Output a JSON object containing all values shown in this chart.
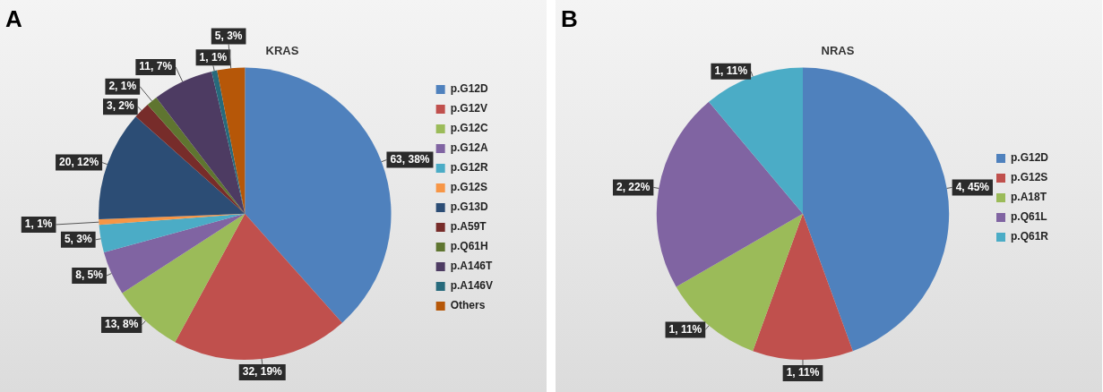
{
  "chart_data": [
    {
      "type": "pie",
      "title": "KRAS",
      "annotations": [
        "A"
      ],
      "legend": "right",
      "categories": [
        "p.G12D",
        "p.G12V",
        "p.G12C",
        "p.G12A",
        "p.G12R",
        "p.G12S",
        "p.G13D",
        "p.A59T",
        "p.Q61H",
        "p.A146T",
        "p.A146V",
        "Others"
      ],
      "values": [
        63,
        32,
        13,
        8,
        5,
        1,
        20,
        3,
        2,
        11,
        1,
        5
      ],
      "value_labels": [
        "63, 38%",
        "32, 19%",
        "13, 8%",
        "8, 5%",
        "5, 3%",
        "1, 1%",
        "20, 12%",
        "3, 2%",
        "2, 1%",
        "11, 7%",
        "1, 1%",
        "5, 3%"
      ],
      "colors": [
        "#4f81bd",
        "#c0504d",
        "#9bbb59",
        "#8064a2",
        "#4bacc6",
        "#f79646",
        "#2c4d75",
        "#772c2a",
        "#5f7530",
        "#4d3b62",
        "#276a7c",
        "#b65708"
      ]
    },
    {
      "type": "pie",
      "title": "NRAS",
      "annotations": [
        "B"
      ],
      "legend": "right",
      "categories": [
        "p.G12D",
        "p.G12S",
        "p.A18T",
        "p.Q61L",
        "p.Q61R"
      ],
      "values": [
        4,
        1,
        1,
        2,
        1
      ],
      "value_labels": [
        "4, 45%",
        "1, 11%",
        "1, 11%",
        "2, 22%",
        "1, 11%"
      ],
      "colors": [
        "#4f81bd",
        "#c0504d",
        "#9bbb59",
        "#8064a2",
        "#4bacc6"
      ]
    }
  ]
}
